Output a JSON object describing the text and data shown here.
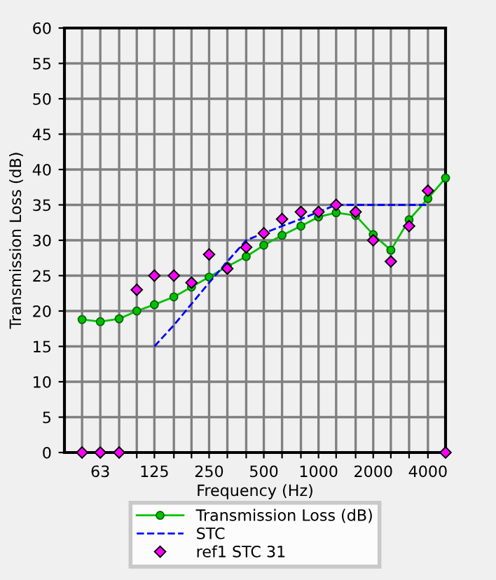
{
  "chart_data": {
    "type": "line",
    "xlabel": "Frequency (Hz)",
    "ylabel": "Transmission Loss (dB)",
    "log": "x",
    "xlim": [
      40,
      5000
    ],
    "ylim": [
      0,
      60
    ],
    "xticks": [
      {
        "value": 50,
        "label": null
      },
      63,
      {
        "value": 80,
        "label": null
      },
      {
        "value": 100,
        "label": null
      },
      125,
      {
        "value": 160,
        "label": null
      },
      {
        "value": 200,
        "label": null
      },
      250,
      {
        "value": 315,
        "label": null
      },
      {
        "value": 400,
        "label": null
      },
      500,
      {
        "value": 630,
        "label": null
      },
      {
        "value": 800,
        "label": null
      },
      1000,
      {
        "value": 1250,
        "label": null
      },
      {
        "value": 1600,
        "label": null
      },
      2000,
      {
        "value": 2500,
        "label": null
      },
      {
        "value": 3150,
        "label": null
      },
      4000
    ],
    "yticks": [
      0,
      5,
      10,
      15,
      20,
      25,
      30,
      35,
      40,
      45,
      50,
      55,
      60
    ],
    "grid": true,
    "legend": "bottom",
    "series": [
      {
        "name": "Transmission Loss (dB)",
        "color": "#00c000",
        "marker": "circle",
        "line_style": "solid",
        "x": [
          50,
          63,
          80,
          100,
          125,
          160,
          200,
          250,
          315,
          400,
          500,
          630,
          800,
          1000,
          1250,
          1600,
          2000,
          2500,
          3150,
          4000,
          5000
        ],
        "values": [
          18.8,
          18.5,
          18.9,
          20,
          20.9,
          22,
          23.4,
          24.8,
          26.3,
          27.7,
          29.3,
          30.7,
          32,
          33.3,
          33.9,
          33.5,
          30.8,
          28.6,
          32.9,
          35.9,
          38.8
        ]
      },
      {
        "name": "STC",
        "color": "#0000ff",
        "marker": "none",
        "line_style": "dashed",
        "x": [
          125,
          160,
          200,
          250,
          315,
          400,
          500,
          630,
          800,
          1000,
          1250,
          1600,
          2000,
          2500,
          3150,
          4000
        ],
        "values": [
          15,
          18,
          21,
          24,
          27,
          30,
          31,
          32,
          33,
          34,
          35,
          35,
          35,
          35,
          35,
          35
        ]
      },
      {
        "name": "ref1 STC 31",
        "type": "scatter",
        "color": "#ff00ff",
        "marker": "diamond",
        "x": [
          50,
          63,
          80,
          100,
          125,
          160,
          200,
          250,
          315,
          400,
          500,
          630,
          800,
          1000,
          1250,
          1600,
          2000,
          2500,
          3150,
          4000,
          5000
        ],
        "values": [
          0,
          0,
          0,
          23,
          25,
          25,
          24,
          28,
          26,
          29,
          31,
          33,
          34,
          34,
          35,
          34,
          30,
          27,
          32,
          37,
          0
        ]
      }
    ]
  }
}
